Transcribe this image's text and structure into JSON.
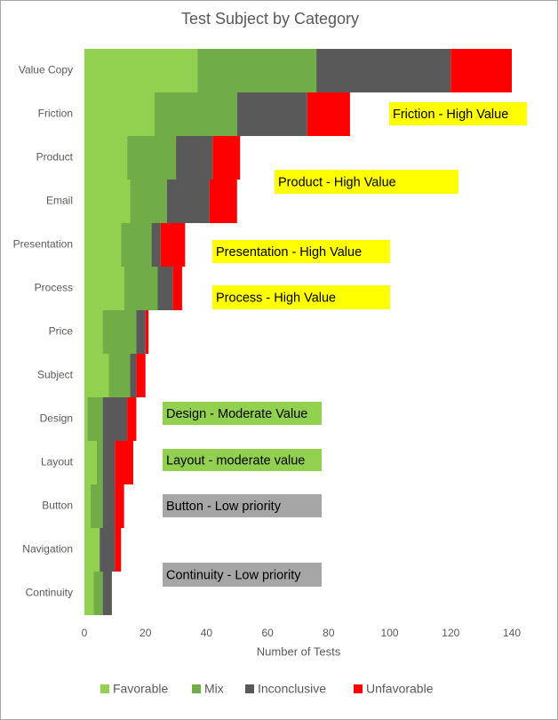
{
  "chart_data": {
    "type": "stacked-bar-horizontal",
    "title": "Test Subject by Category",
    "x_label": "Number of Tests",
    "categories": [
      "Value Copy",
      "Friction",
      "Product",
      "Email",
      "Presentation",
      "Process",
      "Price",
      "Subject",
      "Design",
      "Layout",
      "Button",
      "Navigation",
      "Continuity"
    ],
    "series": [
      {
        "name": "Favorable",
        "color": "#92d050",
        "values": [
          37,
          23,
          14,
          15,
          12,
          13,
          6,
          8,
          1,
          4,
          2,
          5,
          3
        ]
      },
      {
        "name": "Mix",
        "color": "#70ad47",
        "values": [
          39,
          27,
          16,
          12,
          10,
          11,
          11,
          7,
          5,
          2,
          4,
          0,
          3
        ]
      },
      {
        "name": "Inconclusive",
        "color": "#595959",
        "values": [
          44,
          23,
          12,
          14,
          3,
          5,
          3,
          2,
          8,
          4,
          4,
          5,
          3
        ]
      },
      {
        "name": "Unfavorable",
        "color": "#ff0000",
        "values": [
          20,
          14,
          9,
          9,
          8,
          3,
          1,
          3,
          3,
          6,
          3,
          2,
          0
        ]
      }
    ],
    "xlim": [
      0,
      140
    ],
    "xticks": [
      0,
      20,
      40,
      60,
      80,
      100,
      120,
      140
    ],
    "grid": false,
    "legend": "bottom",
    "annotations": [
      {
        "text": "Friction - High Value",
        "color": "#ffff00"
      },
      {
        "text": "Product - High Value",
        "color": "#ffff00"
      },
      {
        "text": "Presentation - High Value",
        "color": "#ffff00"
      },
      {
        "text": "Process - High Value",
        "color": "#ffff00"
      },
      {
        "text": "Design - Moderate Value",
        "color": "#92d050"
      },
      {
        "text": "Layout - moderate value",
        "color": "#92d050"
      },
      {
        "text": "Button - Low priority",
        "color": "#a6a6a6"
      },
      {
        "text": "Continuity - Low priority",
        "color": "#a6a6a6"
      }
    ]
  }
}
